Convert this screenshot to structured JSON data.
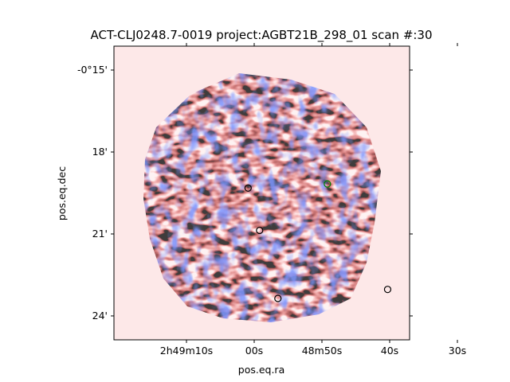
{
  "figure": {
    "title": "ACT-CLJ0248.7-0019 project:AGBT21B_298_01 scan #:30"
  },
  "chart_data": {
    "type": "heatmap",
    "title": "ACT-CLJ0248.7-0019 project:AGBT21B_298_01 scan #:30",
    "xlabel": "pos.eq.ra",
    "ylabel": "pos.eq.dec",
    "colormap": "bwr",
    "background_color": "#fde8e8",
    "x_ticks": [
      {
        "label": "2h49m10s",
        "ra_sec": 190
      },
      {
        "label": "00s",
        "ra_sec": 180
      },
      {
        "label": "48m50s",
        "ra_sec": 170
      },
      {
        "label": "40s",
        "ra_sec": 160
      },
      {
        "label": "30s",
        "ra_sec": 150
      }
    ],
    "y_ticks": [
      {
        "label": "-0°15'",
        "dec_arcmin": -15
      },
      {
        "label": "18'",
        "dec_arcmin": -18
      },
      {
        "label": "21'",
        "dec_arcmin": -21
      },
      {
        "label": "24'",
        "dec_arcmin": -24
      }
    ],
    "markers": [
      {
        "name": "source-1",
        "ra_sec": 180.9,
        "dec_arcmin": -19.32,
        "color": "#000000"
      },
      {
        "name": "source-2",
        "ra_sec": 179.2,
        "dec_arcmin": -20.87,
        "color": "#000000"
      },
      {
        "name": "source-3",
        "ra_sec": 176.5,
        "dec_arcmin": -23.36,
        "color": "#000000"
      },
      {
        "name": "source-4",
        "ra_sec": 160.3,
        "dec_arcmin": -23.03,
        "color": "#000000"
      },
      {
        "name": "center",
        "ra_sec": 169.2,
        "dec_arcmin": -19.17,
        "color": "#008000"
      }
    ]
  }
}
